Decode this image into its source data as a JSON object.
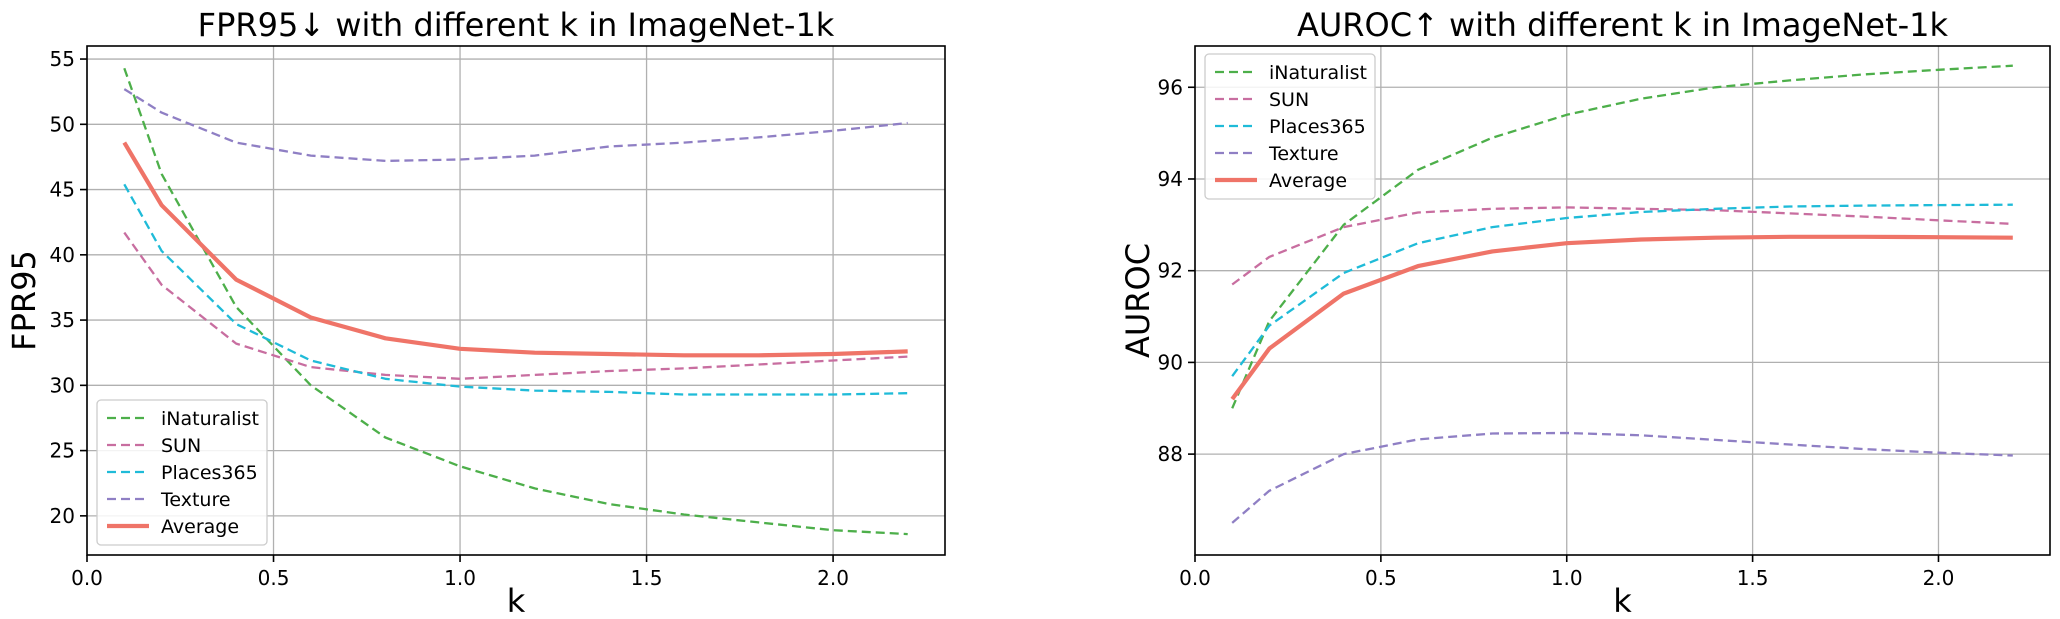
{
  "chart_data": [
    {
      "type": "line",
      "title": "FPR95↓ with different k in ImageNet-1k",
      "xlabel": "k",
      "ylabel": "FPR95",
      "xlim": [
        0.0,
        2.3
      ],
      "ylim": [
        17,
        56
      ],
      "xticks": [
        0.0,
        0.5,
        1.0,
        1.5,
        2.0
      ],
      "xtick_labels": [
        "0.0",
        "0.5",
        "1.0",
        "1.5",
        "2.0"
      ],
      "yticks": [
        20,
        25,
        30,
        35,
        40,
        45,
        50,
        55
      ],
      "ytick_labels": [
        "20",
        "25",
        "30",
        "35",
        "40",
        "45",
        "50",
        "55"
      ],
      "grid": true,
      "legend_position": "bottom-left",
      "x": [
        0.1,
        0.2,
        0.4,
        0.6,
        0.8,
        1.0,
        1.2,
        1.4,
        1.6,
        1.8,
        2.0,
        2.2
      ],
      "series": [
        {
          "name": "iNaturalist",
          "color": "#4daf4a",
          "style": "dashed",
          "values": [
            54.3,
            46.2,
            36.0,
            30.0,
            26.0,
            23.8,
            22.1,
            20.9,
            20.1,
            19.5,
            18.9,
            18.6
          ]
        },
        {
          "name": "SUN",
          "color": "#c86ea0",
          "style": "dashed",
          "values": [
            41.7,
            37.7,
            33.2,
            31.4,
            30.8,
            30.5,
            30.8,
            31.1,
            31.3,
            31.6,
            31.9,
            32.2
          ]
        },
        {
          "name": "Places365",
          "color": "#1fbbd8",
          "style": "dashed",
          "values": [
            45.4,
            40.3,
            34.7,
            31.9,
            30.5,
            29.9,
            29.6,
            29.5,
            29.3,
            29.3,
            29.3,
            29.4
          ]
        },
        {
          "name": "Texture",
          "color": "#8f7fc4",
          "style": "dashed",
          "values": [
            52.7,
            50.9,
            48.6,
            47.6,
            47.2,
            47.3,
            47.6,
            48.3,
            48.6,
            49.0,
            49.5,
            50.1
          ]
        },
        {
          "name": "Average",
          "color": "#ef7468",
          "style": "solid",
          "values": [
            48.6,
            43.8,
            38.1,
            35.2,
            33.6,
            32.8,
            32.5,
            32.4,
            32.3,
            32.3,
            32.4,
            32.6
          ]
        }
      ]
    },
    {
      "type": "line",
      "title": "AUROC↑ with different k in ImageNet-1k",
      "xlabel": "k",
      "ylabel": "AUROC",
      "xlim": [
        0.0,
        2.3
      ],
      "ylim": [
        85.8,
        96.9
      ],
      "xticks": [
        0.0,
        0.5,
        1.0,
        1.5,
        2.0
      ],
      "xtick_labels": [
        "0.0",
        "0.5",
        "1.0",
        "1.5",
        "2.0"
      ],
      "yticks": [
        88,
        90,
        92,
        94,
        96
      ],
      "ytick_labels": [
        "88",
        "90",
        "92",
        "94",
        "96"
      ],
      "grid": true,
      "legend_position": "top-left",
      "x": [
        0.1,
        0.2,
        0.4,
        0.6,
        0.8,
        1.0,
        1.2,
        1.4,
        1.6,
        1.8,
        2.0,
        2.2
      ],
      "series": [
        {
          "name": "iNaturalist",
          "color": "#4daf4a",
          "style": "dashed",
          "values": [
            89.0,
            90.9,
            93.0,
            94.2,
            94.9,
            95.4,
            95.75,
            96.0,
            96.15,
            96.28,
            96.38,
            96.47
          ]
        },
        {
          "name": "SUN",
          "color": "#c86ea0",
          "style": "dashed",
          "values": [
            91.7,
            92.3,
            92.95,
            93.27,
            93.35,
            93.38,
            93.35,
            93.32,
            93.25,
            93.18,
            93.1,
            93.02
          ]
        },
        {
          "name": "Places365",
          "color": "#1fbbd8",
          "style": "dashed",
          "values": [
            89.7,
            90.8,
            91.95,
            92.6,
            92.95,
            93.15,
            93.28,
            93.35,
            93.4,
            93.42,
            93.43,
            93.44
          ]
        },
        {
          "name": "Texture",
          "color": "#8f7fc4",
          "style": "dashed",
          "values": [
            86.5,
            87.2,
            88.0,
            88.32,
            88.45,
            88.46,
            88.41,
            88.31,
            88.21,
            88.11,
            88.03,
            87.97
          ]
        },
        {
          "name": "Average",
          "color": "#ef7468",
          "style": "solid",
          "values": [
            89.2,
            90.3,
            91.5,
            92.1,
            92.42,
            92.6,
            92.68,
            92.72,
            92.74,
            92.74,
            92.73,
            92.72
          ]
        }
      ]
    }
  ]
}
